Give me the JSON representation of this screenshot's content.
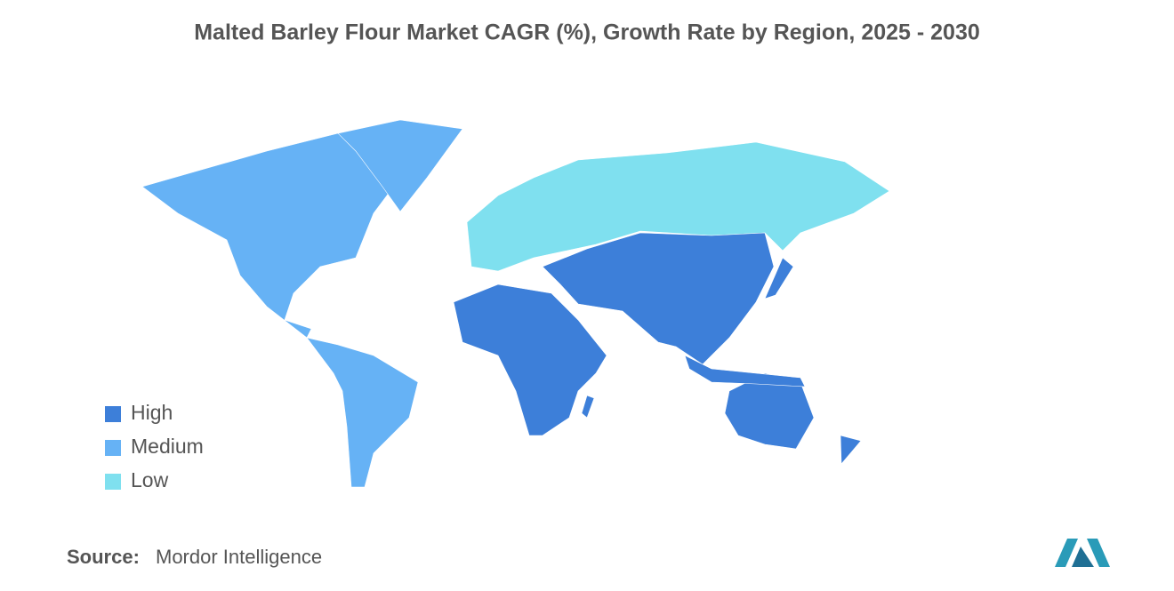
{
  "title": "Malted Barley Flour Market CAGR (%), Growth Rate by Region, 2025 - 2030",
  "legend": [
    {
      "label": "High",
      "color": "#3d7fd9"
    },
    {
      "label": "Medium",
      "color": "#66b2f5"
    },
    {
      "label": "Low",
      "color": "#7fe0ef"
    }
  ],
  "source": {
    "label": "Source:",
    "text": "Mordor Intelligence"
  }
}
